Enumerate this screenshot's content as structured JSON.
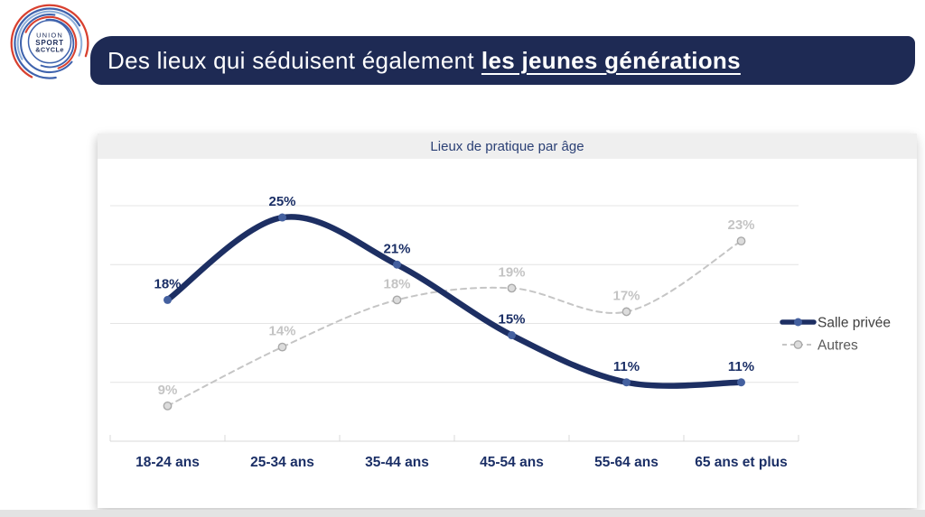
{
  "logo": {
    "line1": "UNION",
    "line2": "SPORT",
    "line3": "&CYCLe"
  },
  "banner": {
    "title_regular": "Des lieux qui séduisent également",
    "title_emphasis": "les jeunes générations",
    "bg_color": "#1e2a54"
  },
  "card": {
    "title": "Lieux de pratique par âge"
  },
  "chart_data": {
    "type": "line",
    "title": "Lieux de pratique par âge",
    "categories": [
      "18-24 ans",
      "25-34 ans",
      "35-44 ans",
      "45-54 ans",
      "55-64 ans",
      "65 ans et plus"
    ],
    "series": [
      {
        "name": "Salle privée",
        "values": [
          18,
          25,
          21,
          15,
          11,
          11
        ],
        "style": "solid",
        "line_color": "#1d2f63",
        "marker_color": "#44609f",
        "label_color": "#1b2f66"
      },
      {
        "name": "Autres",
        "values": [
          9,
          14,
          18,
          19,
          17,
          23
        ],
        "style": "dashed",
        "line_color": "#c5c5c5",
        "marker_fill": "#dcdcdc",
        "marker_stroke": "#a9a9a9",
        "label_color": "#c4c4c4"
      }
    ],
    "unit": "%",
    "ylim": [
      6,
      26
    ],
    "grid_step": 5,
    "grid": true,
    "legend_position": "right",
    "xlabel": "",
    "ylabel": ""
  },
  "colors": {
    "banner_navy": "#1e2a54",
    "grid": "#e4e4e4",
    "axis": "#d9d9d9",
    "x_label": "#1b2f66",
    "header_bg": "#efefef",
    "header_text": "#2b4075",
    "legend_text": "#3e3e3e",
    "legend_text_secondary": "#5a5a5a",
    "strip": "#e3e3e3",
    "logo_blue": "#3f63ad",
    "logo_lightblue": "#8fb0da",
    "logo_red": "#d8402f",
    "logo_text": "#22325f"
  }
}
